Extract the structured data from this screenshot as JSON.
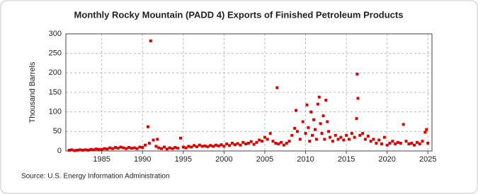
{
  "chart_data": {
    "type": "scatter",
    "title": "Monthly Rocky Mountain (PADD 4) Exports of Finished Petroleum Products",
    "y_label": "Thousand Barrels",
    "source": "Source: U.S. Energy Information Administration",
    "color": "#dd0000",
    "grid": true,
    "xlim": [
      1980.6,
      2025.5
    ],
    "ylim": [
      0,
      300
    ],
    "xticks": [
      1985,
      1990,
      1995,
      2000,
      2005,
      2010,
      2015,
      2020,
      2025
    ],
    "yticks": [
      0,
      50,
      100,
      150,
      200,
      250,
      300
    ],
    "x": [
      1981.0,
      1981.33,
      1981.67,
      1982.0,
      1982.33,
      1982.67,
      1983.0,
      1983.33,
      1983.67,
      1984.0,
      1984.33,
      1984.67,
      1985.0,
      1985.33,
      1985.67,
      1986.0,
      1986.33,
      1986.67,
      1987.0,
      1987.33,
      1987.67,
      1988.0,
      1988.33,
      1988.67,
      1989.0,
      1989.33,
      1989.67,
      1990.0,
      1990.33,
      1990.67,
      1990.83,
      1991.0,
      1991.33,
      1991.67,
      1991.83,
      1992.0,
      1992.33,
      1992.67,
      1993.0,
      1993.33,
      1993.67,
      1994.0,
      1994.33,
      1994.67,
      1995.0,
      1995.33,
      1995.67,
      1996.0,
      1996.33,
      1996.67,
      1997.0,
      1997.33,
      1997.67,
      1998.0,
      1998.33,
      1998.67,
      1999.0,
      1999.33,
      1999.67,
      2000.0,
      2000.33,
      2000.67,
      2001.0,
      2001.33,
      2001.67,
      2002.0,
      2002.33,
      2002.67,
      2003.0,
      2003.33,
      2003.67,
      2004.0,
      2004.33,
      2004.67,
      2005.0,
      2005.33,
      2005.67,
      2006.0,
      2006.33,
      2006.5,
      2006.67,
      2007.0,
      2007.33,
      2007.67,
      2008.0,
      2008.33,
      2008.67,
      2008.83,
      2009.0,
      2009.33,
      2009.67,
      2010.0,
      2010.17,
      2010.33,
      2010.5,
      2010.67,
      2010.83,
      2011.0,
      2011.17,
      2011.33,
      2011.5,
      2011.67,
      2011.83,
      2012.0,
      2012.17,
      2012.33,
      2012.5,
      2012.67,
      2012.83,
      2013.0,
      2013.33,
      2013.67,
      2014.0,
      2014.33,
      2014.67,
      2015.0,
      2015.33,
      2015.67,
      2016.0,
      2016.25,
      2016.33,
      2016.42,
      2016.67,
      2017.0,
      2017.33,
      2017.67,
      2018.0,
      2018.33,
      2018.67,
      2019.0,
      2019.33,
      2019.67,
      2020.0,
      2020.33,
      2020.67,
      2021.0,
      2021.33,
      2021.67,
      2022.0,
      2022.33,
      2022.67,
      2023.0,
      2023.33,
      2023.67,
      2024.0,
      2024.33,
      2024.67,
      2024.83,
      2025.0
    ],
    "values": [
      2,
      3,
      1,
      2,
      3,
      2,
      3,
      2,
      4,
      3,
      5,
      4,
      4,
      6,
      5,
      8,
      6,
      9,
      7,
      10,
      8,
      6,
      9,
      7,
      8,
      6,
      10,
      9,
      15,
      62,
      20,
      282,
      28,
      12,
      30,
      8,
      6,
      10,
      5,
      8,
      6,
      9,
      7,
      33,
      10,
      8,
      12,
      10,
      14,
      11,
      15,
      12,
      13,
      11,
      14,
      12,
      15,
      13,
      16,
      12,
      18,
      14,
      20,
      16,
      19,
      15,
      22,
      18,
      20,
      24,
      17,
      22,
      28,
      25,
      35,
      30,
      45,
      25,
      20,
      162,
      18,
      22,
      15,
      20,
      25,
      40,
      58,
      104,
      50,
      30,
      75,
      45,
      118,
      60,
      25,
      100,
      40,
      80,
      55,
      30,
      120,
      138,
      70,
      45,
      90,
      30,
      130,
      75,
      50,
      35,
      25,
      40,
      30,
      35,
      28,
      40,
      30,
      45,
      35,
      83,
      197,
      135,
      40,
      45,
      30,
      38,
      25,
      30,
      20,
      28,
      18,
      35,
      15,
      20,
      25,
      18,
      22,
      20,
      68,
      25,
      18,
      20,
      15,
      22,
      18,
      25,
      48,
      55,
      20
    ]
  }
}
